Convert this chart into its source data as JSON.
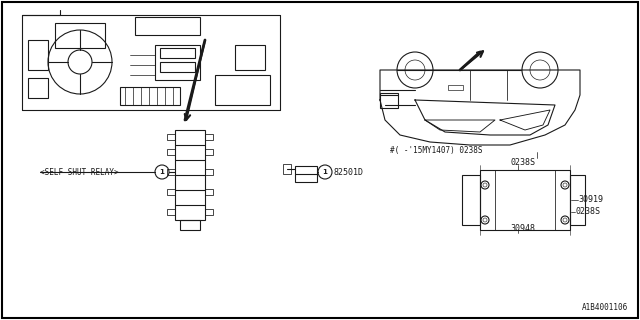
{
  "title": "",
  "background_color": "#ffffff",
  "border_color": "#000000",
  "line_color": "#1a1a1a",
  "part_numbers": {
    "self_shut_relay_label": "<SELF SHUT RELAY>",
    "circle_1_left": "1",
    "part_82501D": "82501D",
    "circle_1_right": "1",
    "part_30948": "30948",
    "part_0238S_top": "0238S",
    "part_30919": "30919",
    "part_0238S_bottom": "0238S",
    "part_0238S_note": "#( -'15MY1407) 0238S"
  },
  "diagram_id": "A1B4001106",
  "fig_width": 6.4,
  "fig_height": 3.2,
  "dpi": 100
}
